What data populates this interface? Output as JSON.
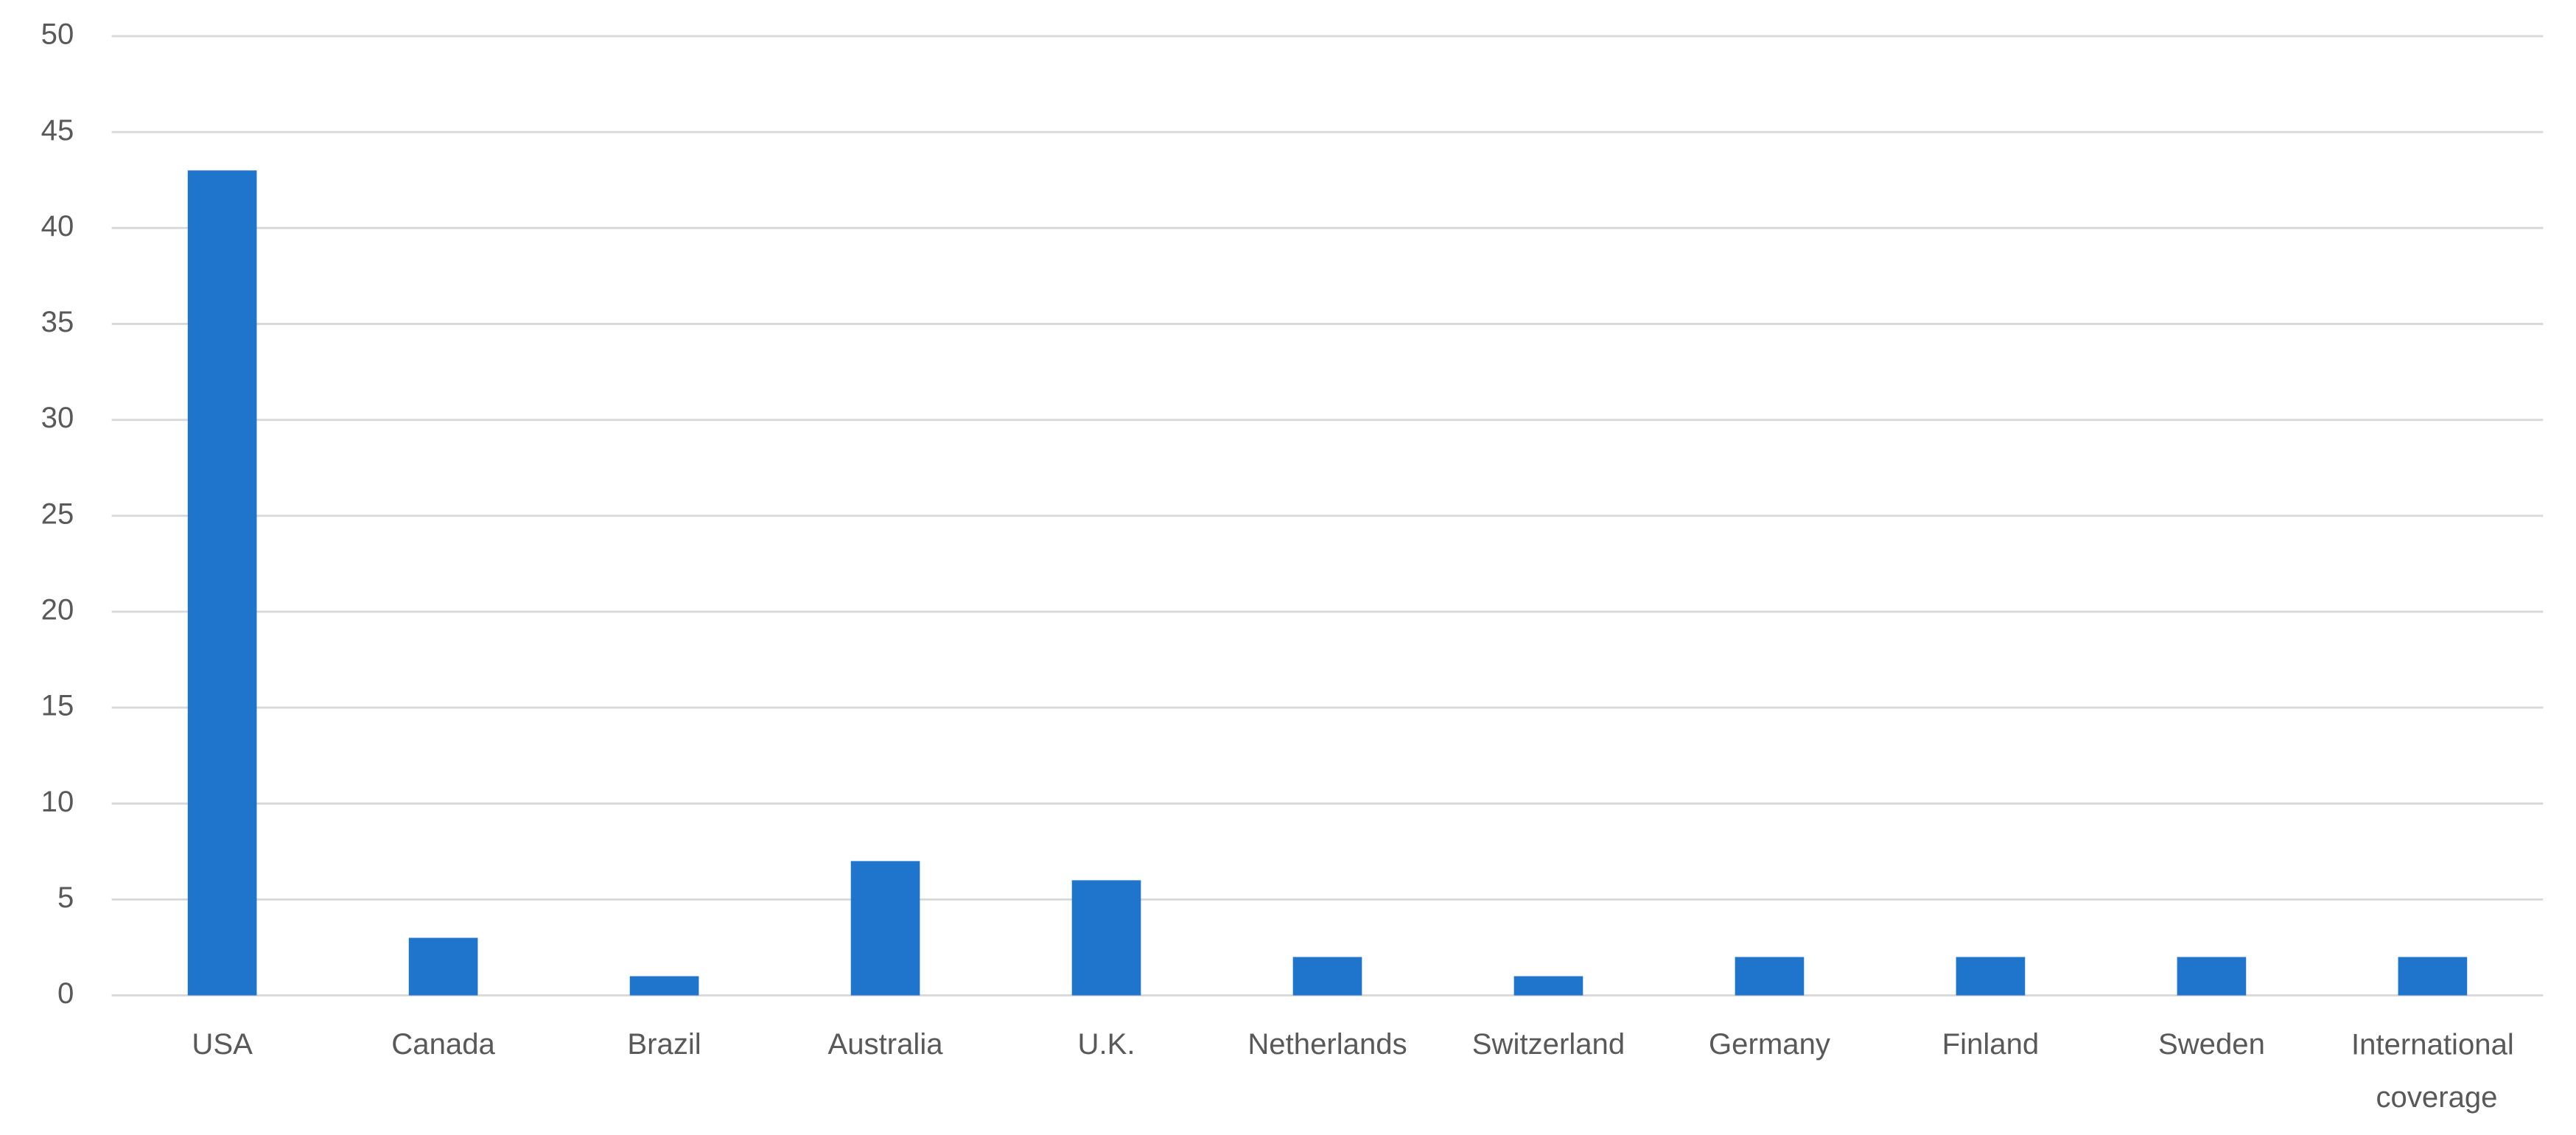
{
  "chart_data": {
    "type": "bar",
    "categories": [
      "USA",
      "Canada",
      "Brazil",
      "Australia",
      "U.K.",
      "Netherlands",
      "Switzerland",
      "Germany",
      "Finland",
      "Sweden",
      "International coverage"
    ],
    "values": [
      43,
      3,
      1,
      7,
      6,
      2,
      1,
      2,
      2,
      2,
      2
    ],
    "color": "#1f74cc",
    "ylim": [
      0,
      50
    ],
    "yticks": [
      0,
      5,
      10,
      15,
      20,
      25,
      30,
      35,
      40,
      45,
      50
    ],
    "grid": true
  }
}
